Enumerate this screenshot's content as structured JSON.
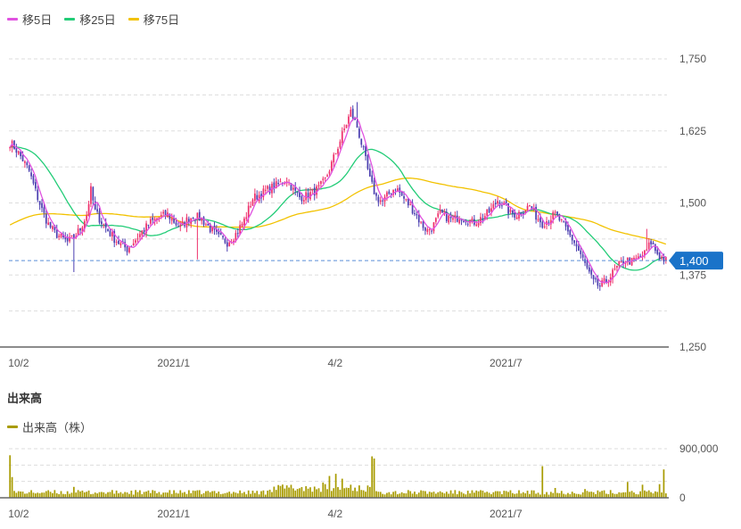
{
  "legend_main": [
    {
      "name": "移5日",
      "color": "#e052e0"
    },
    {
      "name": "移25日",
      "color": "#22cc77"
    },
    {
      "name": "移75日",
      "color": "#f2c200"
    }
  ],
  "volume_title": "出来高",
  "legend_volume": [
    {
      "name": "出来高（株）",
      "color": "#a89b00"
    }
  ],
  "colors": {
    "up": "#ee2f6a",
    "down": "#4b3fb0",
    "volume": "#a89b00",
    "price_label_bg": "#1a73c9",
    "grid": "#dddddd"
  },
  "chart_data": [
    {
      "type": "candlestick",
      "title": "",
      "x_ticks": [
        "10/2",
        "2021/1",
        "4/2",
        "2021/7"
      ],
      "y_ticks": [
        "1,750",
        "1,625",
        "1,500",
        "1,375",
        "1,250"
      ],
      "ylim": [
        1250,
        1750
      ],
      "current_price": 1400,
      "current_price_label": "1,400",
      "grid": true,
      "ohlc_keypoints": [
        [
          0,
          1605
        ],
        [
          3,
          1592
        ],
        [
          6,
          1575
        ],
        [
          9,
          1555
        ],
        [
          12,
          1520
        ],
        [
          15,
          1488
        ],
        [
          18,
          1463
        ],
        [
          21,
          1448
        ],
        [
          24,
          1440
        ],
        [
          27,
          1432
        ],
        [
          30,
          1440
        ],
        [
          33,
          1455
        ],
        [
          36,
          1480
        ],
        [
          38,
          1522
        ],
        [
          40,
          1485
        ],
        [
          43,
          1467
        ],
        [
          46,
          1452
        ],
        [
          49,
          1438
        ],
        [
          52,
          1428
        ],
        [
          55,
          1420
        ],
        [
          58,
          1432
        ],
        [
          62,
          1450
        ],
        [
          66,
          1466
        ],
        [
          70,
          1475
        ],
        [
          74,
          1480
        ],
        [
          77,
          1468
        ],
        [
          80,
          1458
        ],
        [
          83,
          1470
        ],
        [
          86,
          1478
        ],
        [
          90,
          1472
        ],
        [
          94,
          1455
        ],
        [
          98,
          1440
        ],
        [
          102,
          1432
        ],
        [
          106,
          1446
        ],
        [
          110,
          1470
        ],
        [
          114,
          1508
        ],
        [
          118,
          1516
        ],
        [
          122,
          1525
        ],
        [
          126,
          1532
        ],
        [
          130,
          1542
        ],
        [
          133,
          1522
        ],
        [
          136,
          1510
        ],
        [
          139,
          1512
        ],
        [
          142,
          1518
        ],
        [
          145,
          1525
        ],
        [
          148,
          1540
        ],
        [
          151,
          1568
        ],
        [
          154,
          1598
        ],
        [
          157,
          1628
        ],
        [
          160,
          1658
        ],
        [
          163,
          1632
        ],
        [
          166,
          1590
        ],
        [
          169,
          1540
        ],
        [
          172,
          1510
        ],
        [
          175,
          1502
        ],
        [
          178,
          1516
        ],
        [
          181,
          1528
        ],
        [
          184,
          1512
        ],
        [
          187,
          1498
        ],
        [
          190,
          1485
        ],
        [
          193,
          1464
        ],
        [
          196,
          1452
        ],
        [
          199,
          1462
        ],
        [
          202,
          1482
        ],
        [
          205,
          1476
        ],
        [
          208,
          1470
        ],
        [
          211,
          1477
        ],
        [
          214,
          1473
        ],
        [
          217,
          1466
        ],
        [
          220,
          1470
        ],
        [
          223,
          1478
        ],
        [
          226,
          1488
        ],
        [
          229,
          1505
        ],
        [
          232,
          1496
        ],
        [
          235,
          1482
        ],
        [
          238,
          1480
        ],
        [
          241,
          1488
        ],
        [
          244,
          1495
        ],
        [
          247,
          1478
        ],
        [
          250,
          1465
        ],
        [
          253,
          1472
        ],
        [
          256,
          1480
        ],
        [
          259,
          1466
        ],
        [
          262,
          1448
        ],
        [
          265,
          1432
        ],
        [
          268,
          1410
        ],
        [
          271,
          1385
        ],
        [
          274,
          1362
        ],
        [
          277,
          1355
        ],
        [
          280,
          1365
        ],
        [
          283,
          1378
        ],
        [
          286,
          1392
        ],
        [
          289,
          1402
        ],
        [
          292,
          1398
        ],
        [
          295,
          1404
        ],
        [
          298,
          1412
        ],
        [
          301,
          1432
        ],
        [
          303,
          1418
        ],
        [
          305,
          1408
        ],
        [
          308,
          1400
        ]
      ],
      "volume": {
        "type": "bar",
        "y_ticks": [
          "900,000",
          "0"
        ],
        "ylim": [
          0,
          900000
        ],
        "x_ticks": [
          "10/2",
          "2021/1",
          "4/2",
          "2021/7"
        ],
        "spikes": [
          [
            0,
            780000
          ],
          [
            1,
            380000
          ],
          [
            30,
            200000
          ],
          [
            147,
            280000
          ],
          [
            150,
            400000
          ],
          [
            153,
            440000
          ],
          [
            156,
            350000
          ],
          [
            160,
            240000
          ],
          [
            170,
            760000
          ],
          [
            171,
            720000
          ],
          [
            250,
            580000
          ],
          [
            256,
            180000
          ],
          [
            270,
            160000
          ],
          [
            290,
            290000
          ],
          [
            297,
            240000
          ],
          [
            305,
            250000
          ],
          [
            307,
            520000
          ]
        ],
        "base_level": 95000
      }
    }
  ]
}
